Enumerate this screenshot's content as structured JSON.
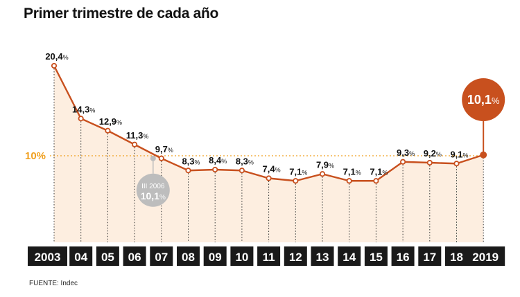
{
  "title": "Primer trimestre de cada año",
  "source": "FUENTE: Indec",
  "colors": {
    "line": "#c8501e",
    "fill": "#fdeee0",
    "reference": "#f0a020",
    "axis_bar": "#1a1a1a",
    "axis_text": "#ffffff",
    "highlight": "#c8501e",
    "callout": "#bdbdbd"
  },
  "chart_data": {
    "type": "area",
    "title": "Primer trimestre de cada año",
    "categories": [
      "2003",
      "04",
      "05",
      "06",
      "07",
      "08",
      "09",
      "10",
      "11",
      "12",
      "13",
      "14",
      "15",
      "16",
      "17",
      "18",
      "2019"
    ],
    "series": [
      {
        "values": [
          20.4,
          14.3,
          12.9,
          11.3,
          9.7,
          8.3,
          8.4,
          8.3,
          7.4,
          7.1,
          7.9,
          7.1,
          7.1,
          9.3,
          9.2,
          9.1,
          10.1
        ]
      }
    ],
    "data_labels": [
      "20,4",
      "14,3",
      "12,9",
      "11,3",
      "9,7",
      "8,3",
      "8,4",
      "8,3",
      "7,4",
      "7,1",
      "7,9",
      "7,1",
      "7,1",
      "9,3",
      "9,2",
      "9,1",
      "10,1"
    ],
    "percent_sign": "%",
    "ylim": [
      0,
      22
    ],
    "reference_line": {
      "value": 10,
      "label": "10%"
    },
    "highlight": {
      "category": "2019",
      "label": "10,1",
      "unit": "%"
    },
    "annotation": {
      "category": "07",
      "title": "III 2006",
      "label": "10,1",
      "unit": "%"
    },
    "grid": "vertical dotted",
    "legend": "none"
  }
}
